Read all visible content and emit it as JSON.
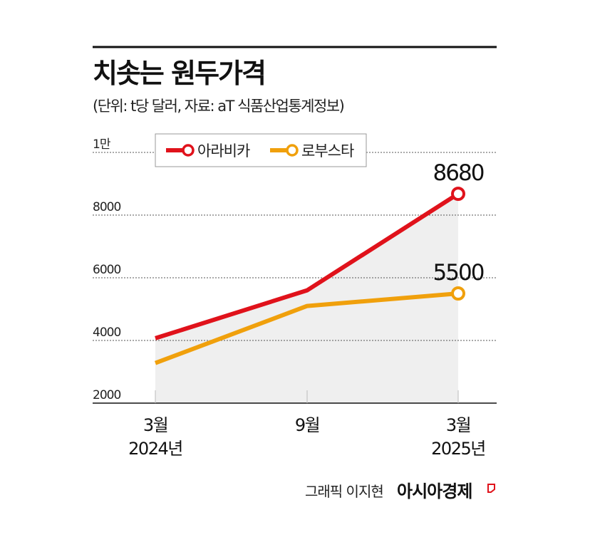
{
  "chart_data": {
    "type": "line",
    "title": "치솟는 원두가격",
    "subtitle": "(단위: t당 달러, 자료: aT 식품산업통계정보)",
    "categories": [
      "3월\n2024년",
      "9월",
      "3월\n2025년"
    ],
    "x_tick_lines": [
      [
        "3월",
        "2024년"
      ],
      [
        "9월"
      ],
      [
        "3월",
        "2025년"
      ]
    ],
    "y_ticks": [
      2000,
      4000,
      6000,
      8000,
      10000
    ],
    "y_tick_labels": [
      "2000",
      "4000",
      "6000",
      "8000",
      "1만"
    ],
    "ylim": [
      2000,
      10000
    ],
    "grid": true,
    "legend_position": "top",
    "series": [
      {
        "name": "아라비카",
        "color": "#e0121b",
        "values": [
          4070,
          5600,
          8680
        ],
        "end_label": "8680",
        "shaded": true
      },
      {
        "name": "로부스타",
        "color": "#f0a00c",
        "values": [
          3280,
          5100,
          5500
        ],
        "end_label": "5500"
      }
    ],
    "area_color": "#efefef"
  },
  "credit": "그래픽 이지현",
  "brand": "아시아경제",
  "brand_color": "#e0121b"
}
